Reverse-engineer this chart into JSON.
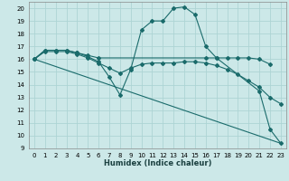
{
  "xlabel": "Humidex (Indice chaleur)",
  "background_color": "#cce8e8",
  "grid_color": "#add4d4",
  "line_color": "#1a6b6b",
  "xlim": [
    -0.5,
    23.5
  ],
  "ylim": [
    9,
    20.5
  ],
  "yticks": [
    9,
    10,
    11,
    12,
    13,
    14,
    15,
    16,
    17,
    18,
    19,
    20
  ],
  "xticks": [
    0,
    1,
    2,
    3,
    4,
    5,
    6,
    7,
    8,
    9,
    10,
    11,
    12,
    13,
    14,
    15,
    16,
    17,
    18,
    19,
    20,
    21,
    22,
    23
  ],
  "series": [
    {
      "x": [
        0,
        1,
        2,
        3,
        4,
        5,
        6,
        7,
        8,
        9,
        10,
        11,
        12,
        13,
        14,
        15,
        16,
        17,
        21,
        22,
        23
      ],
      "y": [
        16,
        16.7,
        16.7,
        16.7,
        16.5,
        16.2,
        15.8,
        14.6,
        13.2,
        15.2,
        18.3,
        19.0,
        19.0,
        20.0,
        20.1,
        19.5,
        17.0,
        16.1,
        13.5,
        10.5,
        9.4
      ],
      "marker": "D",
      "markersize": 2.0,
      "linewidth": 0.8
    },
    {
      "x": [
        0,
        1,
        2,
        3,
        4,
        5,
        6,
        16,
        17,
        18,
        19,
        20,
        21,
        22
      ],
      "y": [
        16,
        16.7,
        16.7,
        16.7,
        16.5,
        16.3,
        16.1,
        16.1,
        16.1,
        16.1,
        16.1,
        16.1,
        16.0,
        15.6
      ],
      "marker": "D",
      "markersize": 2.0,
      "linewidth": 0.8
    },
    {
      "x": [
        0,
        1,
        2,
        3,
        4,
        5,
        6,
        7,
        8,
        9,
        10,
        11,
        12,
        13,
        14,
        15,
        16,
        17,
        18,
        19,
        20,
        21,
        22,
        23
      ],
      "y": [
        16,
        16.6,
        16.6,
        16.6,
        16.4,
        16.1,
        15.7,
        15.3,
        14.9,
        15.3,
        15.6,
        15.7,
        15.7,
        15.7,
        15.8,
        15.8,
        15.7,
        15.5,
        15.2,
        14.8,
        14.3,
        13.8,
        13.0,
        12.5
      ],
      "marker": "D",
      "markersize": 2.0,
      "linewidth": 0.8
    },
    {
      "x": [
        0,
        23
      ],
      "y": [
        16,
        9.4
      ],
      "marker": null,
      "markersize": 0,
      "linewidth": 0.8
    }
  ]
}
